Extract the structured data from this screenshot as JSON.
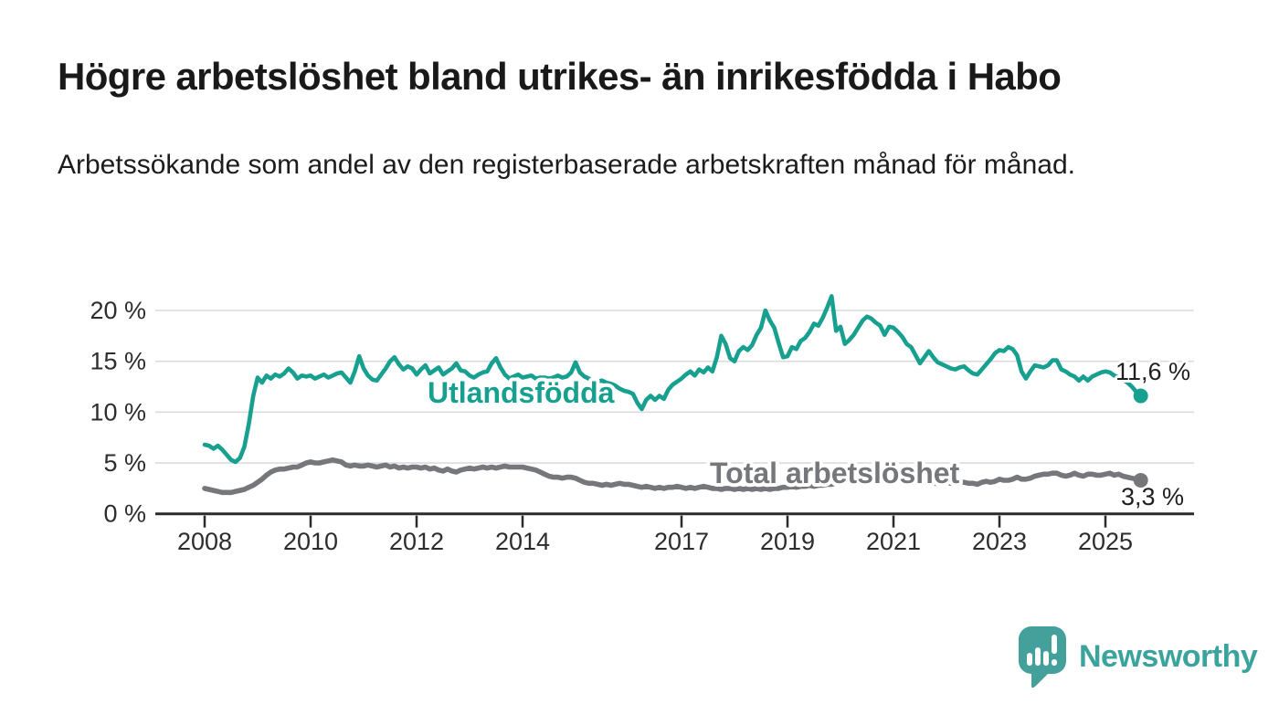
{
  "title": "Högre arbetslöshet bland utrikes- än inrikesfödda i Habo",
  "subtitle": "Arbetssökande som andel av den registerbaserade arbetskraften månad för månad.",
  "branding": {
    "logo_text": "Newsworthy"
  },
  "chart_data": {
    "type": "line",
    "unit": "%",
    "frequency": "monthly",
    "start": "2008-01",
    "end": "2025-09",
    "grid": true,
    "ylim": [
      0,
      22
    ],
    "y_ticks": [
      {
        "value": 20,
        "label": "20 %"
      },
      {
        "value": 15,
        "label": "15 %"
      },
      {
        "value": 10,
        "label": "10 %"
      },
      {
        "value": 5,
        "label": "5 %"
      },
      {
        "value": 0,
        "label": "0 %"
      }
    ],
    "x_ticks": [
      {
        "year": 2008,
        "label": "2008"
      },
      {
        "year": 2010,
        "label": "2010"
      },
      {
        "year": 2012,
        "label": "2012"
      },
      {
        "year": 2014,
        "label": "2014"
      },
      {
        "year": 2017,
        "label": "2017"
      },
      {
        "year": 2019,
        "label": "2019"
      },
      {
        "year": 2021,
        "label": "2021"
      },
      {
        "year": 2023,
        "label": "2023"
      },
      {
        "year": 2025,
        "label": "2025"
      }
    ],
    "series": [
      {
        "name": "Utlandsfödda",
        "color": "#17a08f",
        "end_label": "11,6 %",
        "end_value": 11.6,
        "values": [
          6.8,
          6.7,
          6.4,
          6.7,
          6.3,
          5.8,
          5.3,
          5.1,
          5.5,
          6.6,
          8.8,
          11.6,
          13.4,
          12.9,
          13.6,
          13.3,
          13.7,
          13.5,
          13.8,
          14.3,
          13.9,
          13.3,
          13.6,
          13.5,
          13.6,
          13.3,
          13.5,
          13.7,
          13.4,
          13.6,
          13.8,
          13.9,
          13.4,
          12.9,
          14.0,
          15.5,
          14.3,
          13.6,
          13.2,
          13.1,
          13.7,
          14.3,
          15.0,
          15.4,
          14.7,
          14.2,
          14.5,
          14.3,
          13.7,
          14.2,
          14.6,
          13.8,
          14.1,
          14.4,
          13.7,
          14.0,
          14.3,
          14.8,
          14.1,
          14.0,
          13.6,
          13.4,
          13.7,
          13.9,
          14.0,
          14.8,
          15.3,
          14.4,
          13.7,
          13.3,
          13.5,
          13.7,
          13.4,
          13.5,
          13.6,
          13.3,
          13.4,
          13.4,
          13.3,
          13.4,
          13.6,
          13.4,
          13.5,
          13.9,
          14.9,
          13.9,
          13.5,
          13.3,
          13.1,
          13.0,
          13.1,
          12.9,
          12.8,
          12.6,
          12.3,
          12.1,
          12.0,
          11.8,
          10.9,
          10.3,
          11.2,
          11.6,
          11.2,
          11.6,
          11.3,
          12.2,
          12.7,
          13.0,
          13.3,
          13.7,
          14.0,
          13.6,
          14.2,
          13.9,
          14.4,
          14.0,
          15.4,
          17.5,
          16.7,
          15.3,
          15.0,
          16.0,
          16.4,
          16.1,
          16.6,
          17.6,
          18.3,
          20.0,
          19.0,
          18.3,
          16.8,
          15.4,
          15.5,
          16.4,
          16.2,
          17.0,
          17.3,
          17.9,
          18.7,
          18.5,
          19.3,
          20.3,
          21.4,
          18.0,
          18.4,
          16.7,
          17.1,
          17.6,
          18.3,
          19.0,
          19.4,
          19.2,
          18.8,
          18.5,
          17.6,
          18.4,
          18.3,
          17.9,
          17.4,
          16.7,
          16.4,
          15.6,
          14.8,
          15.4,
          16.0,
          15.4,
          14.9,
          14.7,
          14.5,
          14.3,
          14.2,
          14.4,
          14.5,
          14.1,
          13.8,
          13.7,
          14.2,
          14.7,
          15.2,
          15.8,
          16.1,
          16.0,
          16.4,
          16.2,
          15.6,
          14.0,
          13.3,
          14.0,
          14.6,
          14.5,
          14.4,
          14.6,
          15.1,
          15.1,
          14.2,
          14.0,
          13.7,
          13.5,
          13.1,
          13.5,
          13.1,
          13.5,
          13.7,
          13.9,
          14.0,
          13.9,
          13.6,
          13.4,
          13.2,
          12.9,
          12.5,
          12.0,
          11.6
        ]
      },
      {
        "name": "Total arbetslöshet",
        "color": "#76777b",
        "end_label": "3,3 %",
        "end_value": 3.3,
        "values": [
          2.5,
          2.4,
          2.3,
          2.2,
          2.1,
          2.1,
          2.1,
          2.2,
          2.3,
          2.4,
          2.6,
          2.8,
          3.1,
          3.4,
          3.8,
          4.1,
          4.3,
          4.4,
          4.4,
          4.5,
          4.6,
          4.6,
          4.8,
          5.0,
          5.1,
          5.0,
          5.0,
          5.1,
          5.2,
          5.3,
          5.2,
          5.1,
          4.8,
          4.7,
          4.8,
          4.7,
          4.7,
          4.8,
          4.7,
          4.6,
          4.7,
          4.8,
          4.6,
          4.7,
          4.5,
          4.6,
          4.5,
          4.6,
          4.6,
          4.5,
          4.6,
          4.4,
          4.5,
          4.3,
          4.2,
          4.4,
          4.2,
          4.1,
          4.3,
          4.4,
          4.5,
          4.4,
          4.5,
          4.6,
          4.5,
          4.6,
          4.5,
          4.6,
          4.7,
          4.6,
          4.6,
          4.6,
          4.6,
          4.5,
          4.4,
          4.3,
          4.1,
          3.9,
          3.7,
          3.6,
          3.6,
          3.5,
          3.6,
          3.6,
          3.5,
          3.3,
          3.1,
          3.0,
          3.0,
          2.9,
          2.8,
          2.9,
          2.8,
          2.9,
          3.0,
          2.9,
          2.9,
          2.8,
          2.7,
          2.6,
          2.7,
          2.6,
          2.5,
          2.6,
          2.5,
          2.6,
          2.6,
          2.7,
          2.6,
          2.5,
          2.6,
          2.5,
          2.6,
          2.7,
          2.6,
          2.5,
          2.5,
          2.4,
          2.5,
          2.5,
          2.4,
          2.5,
          2.4,
          2.5,
          2.4,
          2.5,
          2.4,
          2.5,
          2.4,
          2.5,
          2.5,
          2.6,
          2.6,
          2.7,
          2.6,
          2.7,
          2.7,
          2.8,
          2.7,
          2.8,
          2.8,
          2.9,
          2.9,
          3.0,
          3.1,
          3.2,
          3.4,
          3.7,
          3.9,
          4.0,
          4.1,
          4.0,
          3.9,
          3.8,
          3.7,
          3.7,
          3.7,
          3.6,
          3.5,
          3.4,
          3.3,
          3.3,
          3.2,
          3.1,
          3.1,
          3.0,
          3.0,
          3.1,
          3.1,
          3.0,
          3.0,
          3.1,
          3.1,
          3.0,
          3.0,
          2.9,
          3.1,
          3.2,
          3.1,
          3.2,
          3.4,
          3.3,
          3.3,
          3.4,
          3.6,
          3.4,
          3.4,
          3.5,
          3.7,
          3.8,
          3.9,
          3.9,
          4.0,
          4.0,
          3.8,
          3.7,
          3.8,
          4.0,
          3.8,
          3.7,
          3.9,
          3.9,
          3.8,
          3.8,
          3.9,
          4.0,
          3.8,
          3.9,
          3.7,
          3.6,
          3.5,
          3.4,
          3.3
        ]
      }
    ]
  }
}
